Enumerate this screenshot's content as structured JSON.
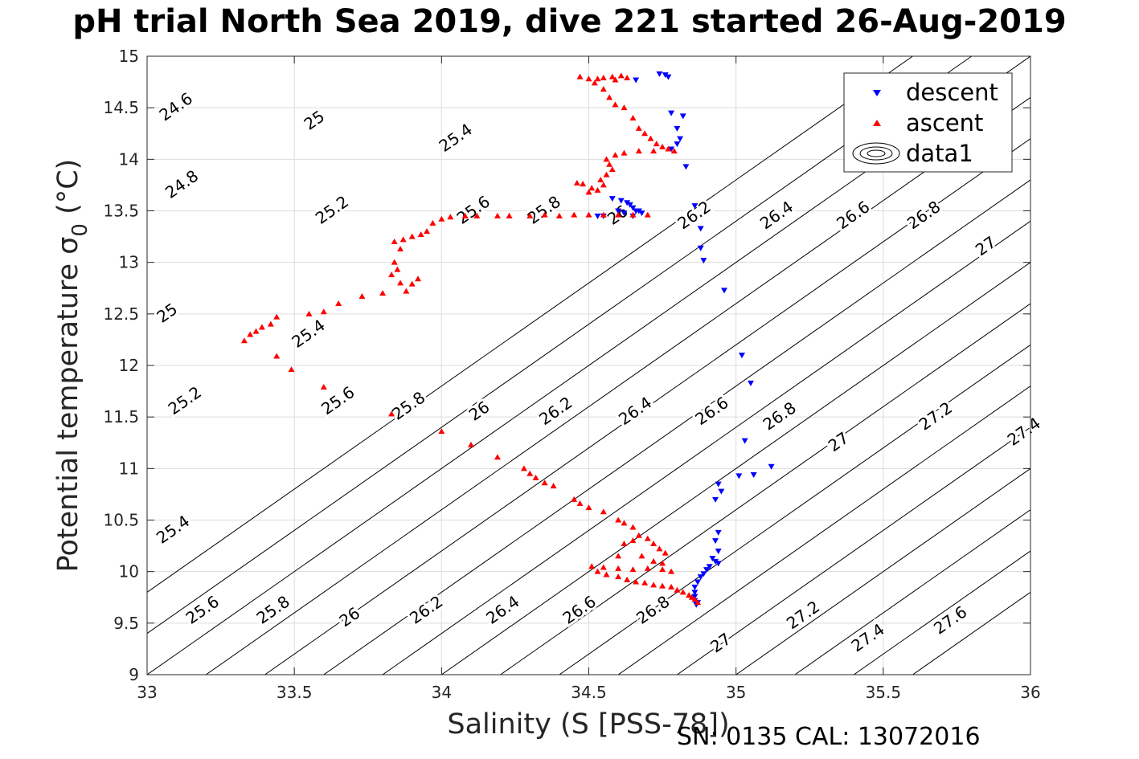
{
  "chart_data": {
    "type": "scatter",
    "title": "pH trial North Sea 2019, dive 221 started 26-Aug-2019",
    "xlabel": "Salinity (S [PSS-78])",
    "ylabel": "Potential temperature σ",
    "ylabel_sub": "0",
    "ylabel_unit": " (°C)",
    "xlim": [
      33,
      36
    ],
    "ylim": [
      9,
      15
    ],
    "xticks": [
      33,
      33.5,
      34,
      34.5,
      35,
      35.5,
      36
    ],
    "xtick_labels": [
      "33",
      "33.5",
      "34",
      "34.5",
      "35",
      "35.5",
      "36"
    ],
    "yticks": [
      9,
      9.5,
      10,
      10.5,
      11,
      11.5,
      12,
      12.5,
      13,
      13.5,
      14,
      14.5,
      15
    ],
    "ytick_labels": [
      "9",
      "9.5",
      "10",
      "10.5",
      "11",
      "11.5",
      "12",
      "12.5",
      "13",
      "13.5",
      "14",
      "14.5",
      "15"
    ],
    "grid": true,
    "legend_position": "top-right",
    "legend": [
      "descent",
      "ascent",
      "data1"
    ],
    "footer": "SN: 0135  CAL: 13072016",
    "colors": {
      "descent": "#0000ff",
      "ascent": "#ff0000",
      "contour": "#000000",
      "grid": "#dcdcdc"
    },
    "contours": [
      {
        "level": "24.6",
        "x0": 32.6,
        "x1": 35.6
      },
      {
        "level": "24.8",
        "x0": 32.8,
        "x1": 35.8
      },
      {
        "level": "25",
        "x0": 33.0,
        "x1": 36.0
      },
      {
        "level": "25.2",
        "x0": 33.2,
        "x1": 36.2
      },
      {
        "level": "25.4",
        "x0": 33.4,
        "x1": 36.4
      },
      {
        "level": "25.6",
        "x0": 33.6,
        "x1": 36.6
      },
      {
        "level": "25.8",
        "x0": 33.8,
        "x1": 36.8
      },
      {
        "level": "26",
        "x0": 34.0,
        "x1": 37.0
      },
      {
        "level": "26.2",
        "x0": 34.2,
        "x1": 37.2
      },
      {
        "level": "26.4",
        "x0": 34.4,
        "x1": 37.4
      },
      {
        "level": "26.6",
        "x0": 34.6,
        "x1": 37.6
      },
      {
        "level": "26.8",
        "x0": 34.8,
        "x1": 37.8
      },
      {
        "level": "27",
        "x0": 35.0,
        "x1": 38.0
      },
      {
        "level": "27.2",
        "x0": 35.2,
        "x1": 38.2
      },
      {
        "level": "27.4",
        "x0": 35.4,
        "x1": 38.4
      },
      {
        "level": "27.6",
        "x0": 35.6,
        "x1": 38.6
      }
    ],
    "contour_labels": [
      {
        "text": "24.6",
        "x": 33.1,
        "y": 14.5
      },
      {
        "text": "25",
        "x": 33.57,
        "y": 14.37
      },
      {
        "text": "25.4",
        "x": 34.05,
        "y": 14.2
      },
      {
        "text": "24.8",
        "x": 33.12,
        "y": 13.75
      },
      {
        "text": "25.2",
        "x": 33.63,
        "y": 13.5
      },
      {
        "text": "25.6",
        "x": 34.11,
        "y": 13.5
      },
      {
        "text": "25.8",
        "x": 34.35,
        "y": 13.5
      },
      {
        "text": "26",
        "x": 34.6,
        "y": 13.45
      },
      {
        "text": "26.2",
        "x": 34.86,
        "y": 13.45
      },
      {
        "text": "26.4",
        "x": 35.14,
        "y": 13.45
      },
      {
        "text": "26.6",
        "x": 35.4,
        "y": 13.45
      },
      {
        "text": "26.8",
        "x": 35.64,
        "y": 13.45
      },
      {
        "text": "27",
        "x": 35.85,
        "y": 13.15
      },
      {
        "text": "25",
        "x": 33.07,
        "y": 12.5
      },
      {
        "text": "25.4",
        "x": 33.55,
        "y": 12.3
      },
      {
        "text": "25.2",
        "x": 33.13,
        "y": 11.65
      },
      {
        "text": "25.6",
        "x": 33.65,
        "y": 11.65
      },
      {
        "text": "25.8",
        "x": 33.89,
        "y": 11.6
      },
      {
        "text": "26",
        "x": 34.13,
        "y": 11.55
      },
      {
        "text": "26.2",
        "x": 34.39,
        "y": 11.55
      },
      {
        "text": "26.4",
        "x": 34.66,
        "y": 11.55
      },
      {
        "text": "26.6",
        "x": 34.92,
        "y": 11.55
      },
      {
        "text": "26.8",
        "x": 35.15,
        "y": 11.5
      },
      {
        "text": "27",
        "x": 35.35,
        "y": 11.25
      },
      {
        "text": "27.2",
        "x": 35.68,
        "y": 11.5
      },
      {
        "text": "27.4",
        "x": 35.98,
        "y": 11.35
      },
      {
        "text": "25.4",
        "x": 33.09,
        "y": 10.4
      },
      {
        "text": "25.6",
        "x": 33.19,
        "y": 9.62
      },
      {
        "text": "25.8",
        "x": 33.43,
        "y": 9.62
      },
      {
        "text": "26",
        "x": 33.69,
        "y": 9.55
      },
      {
        "text": "26.2",
        "x": 33.95,
        "y": 9.62
      },
      {
        "text": "26.4",
        "x": 34.21,
        "y": 9.62
      },
      {
        "text": "26.6",
        "x": 34.47,
        "y": 9.62
      },
      {
        "text": "26.8",
        "x": 34.72,
        "y": 9.62
      },
      {
        "text": "27",
        "x": 34.95,
        "y": 9.3
      },
      {
        "text": "27.2",
        "x": 35.23,
        "y": 9.57
      },
      {
        "text": "27.4",
        "x": 35.45,
        "y": 9.35
      },
      {
        "text": "27.6",
        "x": 35.73,
        "y": 9.52
      }
    ],
    "series": [
      {
        "name": "descent",
        "marker": "triangle-down",
        "points": [
          [
            34.74,
            14.83
          ],
          [
            34.76,
            14.82
          ],
          [
            34.77,
            14.8
          ],
          [
            34.66,
            14.77
          ],
          [
            34.78,
            14.45
          ],
          [
            34.82,
            14.42
          ],
          [
            34.8,
            14.3
          ],
          [
            34.81,
            14.2
          ],
          [
            34.8,
            14.15
          ],
          [
            34.78,
            14.1
          ],
          [
            34.83,
            13.93
          ],
          [
            34.86,
            13.55
          ],
          [
            34.88,
            13.33
          ],
          [
            34.88,
            13.14
          ],
          [
            34.89,
            13.02
          ],
          [
            34.96,
            12.73
          ],
          [
            34.58,
            13.62
          ],
          [
            34.61,
            13.6
          ],
          [
            34.63,
            13.58
          ],
          [
            34.64,
            13.56
          ],
          [
            34.65,
            13.53
          ],
          [
            34.66,
            13.5
          ],
          [
            34.67,
            13.5
          ],
          [
            34.68,
            13.48
          ],
          [
            34.6,
            13.5
          ],
          [
            34.62,
            13.48
          ],
          [
            34.55,
            13.45
          ],
          [
            34.53,
            13.45
          ],
          [
            34.65,
            13.45
          ],
          [
            35.02,
            12.1
          ],
          [
            35.05,
            11.83
          ],
          [
            35.03,
            11.27
          ],
          [
            35.12,
            11.02
          ],
          [
            35.06,
            10.94
          ],
          [
            35.01,
            10.93
          ],
          [
            34.94,
            10.85
          ],
          [
            34.95,
            10.78
          ],
          [
            34.93,
            10.7
          ],
          [
            34.94,
            10.38
          ],
          [
            34.93,
            10.3
          ],
          [
            34.94,
            10.2
          ],
          [
            34.92,
            10.13
          ],
          [
            34.93,
            10.1
          ],
          [
            34.94,
            10.08
          ],
          [
            34.91,
            10.05
          ],
          [
            34.9,
            10.02
          ],
          [
            34.89,
            9.98
          ],
          [
            34.88,
            9.95
          ],
          [
            34.87,
            9.9
          ],
          [
            34.86,
            9.85
          ],
          [
            34.86,
            9.8
          ],
          [
            34.86,
            9.76
          ],
          [
            34.86,
            9.72
          ],
          [
            34.87,
            9.7
          ],
          [
            34.865,
            9.68
          ]
        ]
      },
      {
        "name": "ascent",
        "marker": "triangle-up",
        "points": [
          [
            34.47,
            14.8
          ],
          [
            34.5,
            14.78
          ],
          [
            34.53,
            14.78
          ],
          [
            34.55,
            14.79
          ],
          [
            34.58,
            14.8
          ],
          [
            34.61,
            14.81
          ],
          [
            34.63,
            14.79
          ],
          [
            34.59,
            14.77
          ],
          [
            34.52,
            14.74
          ],
          [
            34.55,
            14.68
          ],
          [
            34.57,
            14.6
          ],
          [
            34.59,
            14.53
          ],
          [
            34.62,
            14.5
          ],
          [
            34.65,
            14.4
          ],
          [
            34.67,
            14.3
          ],
          [
            34.69,
            14.25
          ],
          [
            34.71,
            14.2
          ],
          [
            34.73,
            14.15
          ],
          [
            34.75,
            14.12
          ],
          [
            34.77,
            14.1
          ],
          [
            34.79,
            14.08
          ],
          [
            34.72,
            14.08
          ],
          [
            34.67,
            14.08
          ],
          [
            34.62,
            14.06
          ],
          [
            34.59,
            14.04
          ],
          [
            34.56,
            14.0
          ],
          [
            34.57,
            13.95
          ],
          [
            34.58,
            13.9
          ],
          [
            34.56,
            13.85
          ],
          [
            34.54,
            13.8
          ],
          [
            34.55,
            13.75
          ],
          [
            34.53,
            13.7
          ],
          [
            34.51,
            13.72
          ],
          [
            34.48,
            13.76
          ],
          [
            34.46,
            13.77
          ],
          [
            34.5,
            13.68
          ],
          [
            34.7,
            13.46
          ],
          [
            34.65,
            13.46
          ],
          [
            34.6,
            13.46
          ],
          [
            34.55,
            13.46
          ],
          [
            34.5,
            13.46
          ],
          [
            34.45,
            13.46
          ],
          [
            34.4,
            13.45
          ],
          [
            34.35,
            13.46
          ],
          [
            34.3,
            13.45
          ],
          [
            34.23,
            13.45
          ],
          [
            34.19,
            13.45
          ],
          [
            34.12,
            13.45
          ],
          [
            34.08,
            13.45
          ],
          [
            34.03,
            13.44
          ],
          [
            34.0,
            13.42
          ],
          [
            33.97,
            13.38
          ],
          [
            33.95,
            13.3
          ],
          [
            33.93,
            13.27
          ],
          [
            33.9,
            13.25
          ],
          [
            33.87,
            13.22
          ],
          [
            33.84,
            13.2
          ],
          [
            33.86,
            13.13
          ],
          [
            33.84,
            13.0
          ],
          [
            33.85,
            12.93
          ],
          [
            33.83,
            12.88
          ],
          [
            33.86,
            12.8
          ],
          [
            33.88,
            12.72
          ],
          [
            33.9,
            12.79
          ],
          [
            33.92,
            12.84
          ],
          [
            33.8,
            12.7
          ],
          [
            33.73,
            12.67
          ],
          [
            33.65,
            12.6
          ],
          [
            33.6,
            12.52
          ],
          [
            33.55,
            12.5
          ],
          [
            33.44,
            12.47
          ],
          [
            33.42,
            12.4
          ],
          [
            33.39,
            12.37
          ],
          [
            33.37,
            12.33
          ],
          [
            33.35,
            12.3
          ],
          [
            33.33,
            12.24
          ],
          [
            33.44,
            12.09
          ],
          [
            33.49,
            11.96
          ],
          [
            33.6,
            11.79
          ],
          [
            33.83,
            11.53
          ],
          [
            34.0,
            11.36
          ],
          [
            34.1,
            11.23
          ],
          [
            34.19,
            11.11
          ],
          [
            34.28,
            11.0
          ],
          [
            34.3,
            10.95
          ],
          [
            34.32,
            10.91
          ],
          [
            34.35,
            10.86
          ],
          [
            34.38,
            10.83
          ],
          [
            34.45,
            10.7
          ],
          [
            34.47,
            10.66
          ],
          [
            34.5,
            10.62
          ],
          [
            34.55,
            10.58
          ],
          [
            34.6,
            10.5
          ],
          [
            34.62,
            10.47
          ],
          [
            34.65,
            10.43
          ],
          [
            34.67,
            10.35
          ],
          [
            34.7,
            10.32
          ],
          [
            34.72,
            10.27
          ],
          [
            34.74,
            10.22
          ],
          [
            34.76,
            10.18
          ],
          [
            34.51,
            10.05
          ],
          [
            34.55,
            10.04
          ],
          [
            34.6,
            10.03
          ],
          [
            34.65,
            10.02
          ],
          [
            34.7,
            10.03
          ],
          [
            34.75,
            10.02
          ],
          [
            34.78,
            10.0
          ],
          [
            34.6,
            10.15
          ],
          [
            34.62,
            10.27
          ],
          [
            34.65,
            10.3
          ],
          [
            34.68,
            10.15
          ],
          [
            34.72,
            10.1
          ],
          [
            34.75,
            10.08
          ],
          [
            34.53,
            10.0
          ],
          [
            34.56,
            9.97
          ],
          [
            34.6,
            9.95
          ],
          [
            34.63,
            9.92
          ],
          [
            34.66,
            9.9
          ],
          [
            34.69,
            9.89
          ],
          [
            34.72,
            9.87
          ],
          [
            34.75,
            9.86
          ],
          [
            34.78,
            9.85
          ],
          [
            34.8,
            9.82
          ],
          [
            34.82,
            9.8
          ],
          [
            34.84,
            9.77
          ],
          [
            34.85,
            9.75
          ],
          [
            34.86,
            9.73
          ],
          [
            34.87,
            9.7
          ]
        ]
      }
    ]
  }
}
